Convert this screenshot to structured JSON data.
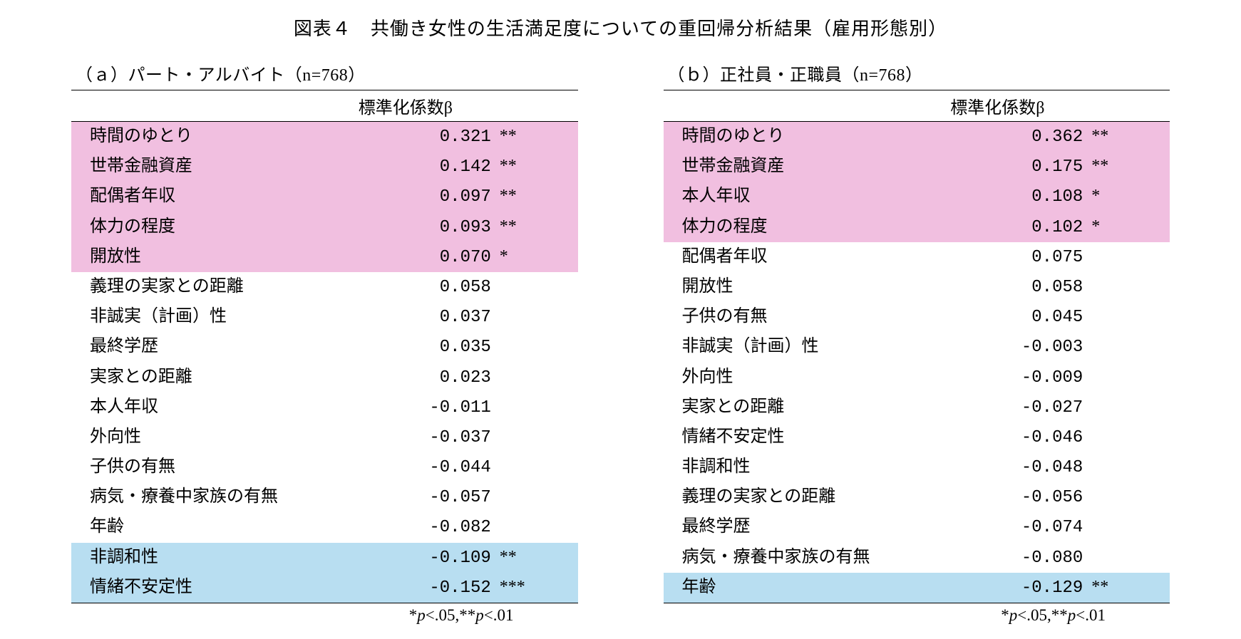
{
  "title": "図表４　共働き女性の生活満足度についての重回帰分析結果（雇用形態別）",
  "highlight_colors": {
    "pink": "#f1bfe0",
    "blue": "#b8def1",
    "none": "#ffffff"
  },
  "footnote_html": "*<i>p</i><.05,**<i>p</i><.01",
  "coef_header": "標準化係数β",
  "panels": [
    {
      "key": "a",
      "subtitle": "（ａ）パート・アルバイト（n=768）",
      "rows": [
        {
          "label": "時間のゆとり",
          "value": "0.321",
          "sig": "**",
          "hl": "pink"
        },
        {
          "label": "世帯金融資産",
          "value": "0.142",
          "sig": "**",
          "hl": "pink"
        },
        {
          "label": "配偶者年収",
          "value": "0.097",
          "sig": "**",
          "hl": "pink"
        },
        {
          "label": "体力の程度",
          "value": "0.093",
          "sig": "**",
          "hl": "pink"
        },
        {
          "label": "開放性",
          "value": "0.070",
          "sig": "*",
          "hl": "pink"
        },
        {
          "label": "義理の実家との距離",
          "value": "0.058",
          "sig": "",
          "hl": "none"
        },
        {
          "label": "非誠実（計画）性",
          "value": "0.037",
          "sig": "",
          "hl": "none"
        },
        {
          "label": "最終学歴",
          "value": "0.035",
          "sig": "",
          "hl": "none"
        },
        {
          "label": "実家との距離",
          "value": "0.023",
          "sig": "",
          "hl": "none"
        },
        {
          "label": "本人年収",
          "value": "-0.011",
          "sig": "",
          "hl": "none"
        },
        {
          "label": "外向性",
          "value": "-0.037",
          "sig": "",
          "hl": "none"
        },
        {
          "label": "子供の有無",
          "value": "-0.044",
          "sig": "",
          "hl": "none"
        },
        {
          "label": "病気・療養中家族の有無",
          "value": "-0.057",
          "sig": "",
          "hl": "none"
        },
        {
          "label": "年齢",
          "value": "-0.082",
          "sig": "",
          "hl": "none"
        },
        {
          "label": "非調和性",
          "value": "-0.109",
          "sig": "**",
          "hl": "blue"
        },
        {
          "label": "情緒不安定性",
          "value": "-0.152",
          "sig": "***",
          "hl": "blue"
        }
      ]
    },
    {
      "key": "b",
      "subtitle": "（ｂ）正社員・正職員（n=768）",
      "rows": [
        {
          "label": "時間のゆとり",
          "value": "0.362",
          "sig": "**",
          "hl": "pink"
        },
        {
          "label": "世帯金融資産",
          "value": "0.175",
          "sig": "**",
          "hl": "pink"
        },
        {
          "label": "本人年収",
          "value": "0.108",
          "sig": "*",
          "hl": "pink"
        },
        {
          "label": "体力の程度",
          "value": "0.102",
          "sig": "*",
          "hl": "pink"
        },
        {
          "label": "配偶者年収",
          "value": "0.075",
          "sig": "",
          "hl": "none"
        },
        {
          "label": "開放性",
          "value": "0.058",
          "sig": "",
          "hl": "none"
        },
        {
          "label": "子供の有無",
          "value": "0.045",
          "sig": "",
          "hl": "none"
        },
        {
          "label": "非誠実（計画）性",
          "value": "-0.003",
          "sig": "",
          "hl": "none"
        },
        {
          "label": "外向性",
          "value": "-0.009",
          "sig": "",
          "hl": "none"
        },
        {
          "label": "実家との距離",
          "value": "-0.027",
          "sig": "",
          "hl": "none"
        },
        {
          "label": "情緒不安定性",
          "value": "-0.046",
          "sig": "",
          "hl": "none"
        },
        {
          "label": "非調和性",
          "value": "-0.048",
          "sig": "",
          "hl": "none"
        },
        {
          "label": "義理の実家との距離",
          "value": "-0.056",
          "sig": "",
          "hl": "none"
        },
        {
          "label": "最終学歴",
          "value": "-0.074",
          "sig": "",
          "hl": "none"
        },
        {
          "label": "病気・療養中家族の有無",
          "value": "-0.080",
          "sig": "",
          "hl": "none"
        },
        {
          "label": "年齢",
          "value": "-0.129",
          "sig": "**",
          "hl": "blue"
        }
      ]
    }
  ]
}
